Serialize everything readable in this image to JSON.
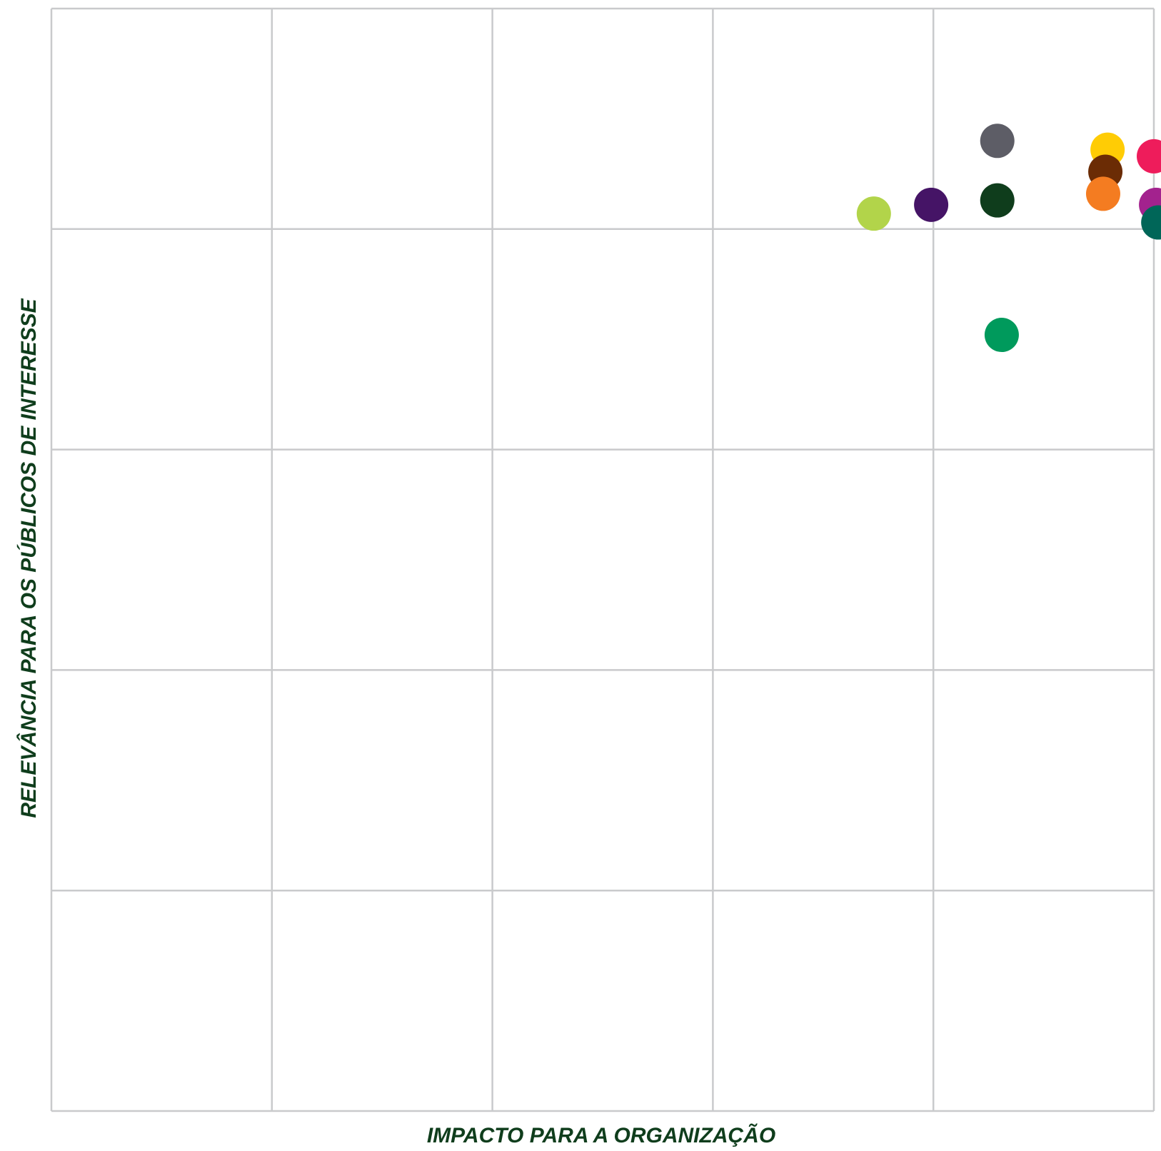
{
  "chart_data": {
    "type": "scatter",
    "title": "",
    "xlabel": "IMPACTO PARA A ORGANIZAÇÃO",
    "ylabel": "RELEVÂNCIA PARA OS PÚBLICOS DE INTERESSE",
    "xlim": [
      0,
      5
    ],
    "ylim": [
      0,
      5
    ],
    "grid": true,
    "x_divisions": 5,
    "y_divisions": 5,
    "show_tick_labels": false,
    "points": [
      {
        "x": 4.29,
        "y": 4.4,
        "color": "#5d5d66"
      },
      {
        "x": 4.79,
        "y": 4.36,
        "color": "#ffcc05"
      },
      {
        "x": 5.0,
        "y": 4.33,
        "color": "#ee1c5b"
      },
      {
        "x": 4.78,
        "y": 4.26,
        "color": "#6b2c05"
      },
      {
        "x": 4.77,
        "y": 4.16,
        "color": "#f47c21"
      },
      {
        "x": 4.29,
        "y": 4.13,
        "color": "#0f3d1c"
      },
      {
        "x": 3.99,
        "y": 4.11,
        "color": "#451466"
      },
      {
        "x": 5.01,
        "y": 4.11,
        "color": "#a3228e"
      },
      {
        "x": 3.73,
        "y": 4.07,
        "color": "#b2d44a"
      },
      {
        "x": 5.02,
        "y": 4.03,
        "color": "#006658"
      },
      {
        "x": 4.31,
        "y": 3.52,
        "color": "#009a5c"
      }
    ]
  }
}
